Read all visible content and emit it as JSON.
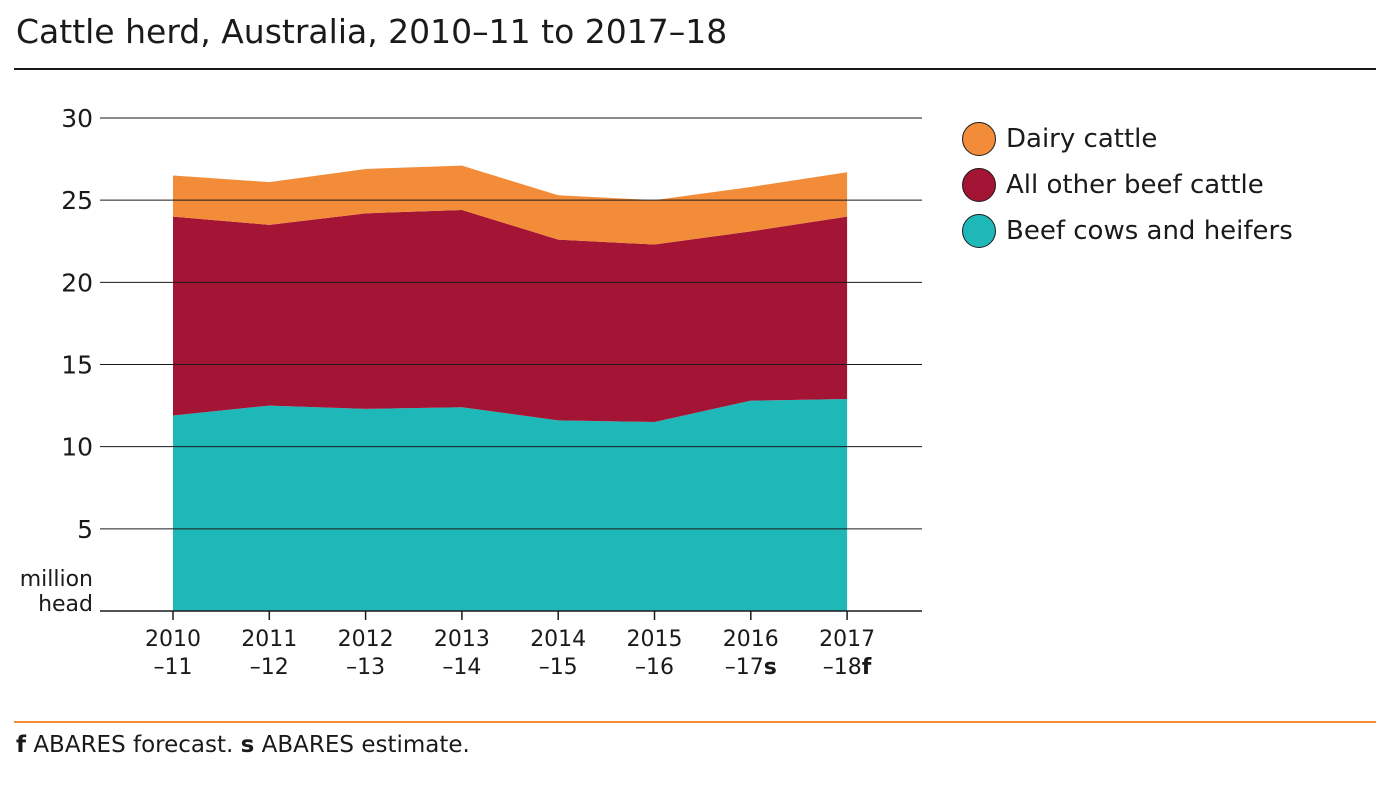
{
  "chart_data": {
    "type": "area",
    "stacked": true,
    "title": "Cattle herd, Australia, 2010–11 to 2017–18",
    "ylabel": [
      "million",
      "head"
    ],
    "ylim": [
      0,
      30
    ],
    "yticks": [
      5,
      10,
      15,
      20,
      25,
      30
    ],
    "grid": "horizontal",
    "legend_position": "right",
    "categories": [
      [
        "2010",
        "–11"
      ],
      [
        "2011",
        "–12"
      ],
      [
        "2012",
        "–13"
      ],
      [
        "2013",
        "–14"
      ],
      [
        "2014",
        "–15"
      ],
      [
        "2015",
        "–16"
      ],
      [
        "2016",
        "–17",
        "s"
      ],
      [
        "2017",
        "–18",
        "f"
      ]
    ],
    "series": [
      {
        "name": "Beef cows and heifers",
        "color": "#1fb8b8",
        "values": [
          11.9,
          12.5,
          12.3,
          12.4,
          11.6,
          11.5,
          12.8,
          12.9
        ]
      },
      {
        "name": "All other beef cattle",
        "color": "#a31435",
        "values": [
          12.1,
          11.0,
          11.9,
          12.0,
          11.0,
          10.8,
          10.3,
          11.1
        ]
      },
      {
        "name": "Dairy cattle",
        "color": "#f28c38",
        "values": [
          2.5,
          2.6,
          2.7,
          2.7,
          2.7,
          2.7,
          2.7,
          2.7
        ]
      }
    ],
    "legend_order": [
      "Dairy cattle",
      "All other beef cattle",
      "Beef cows and heifers"
    ]
  },
  "footnote": {
    "f_marker": "f",
    "f_text": " ABARES forecast. ",
    "s_marker": "s",
    "s_text": " ABARES estimate."
  }
}
